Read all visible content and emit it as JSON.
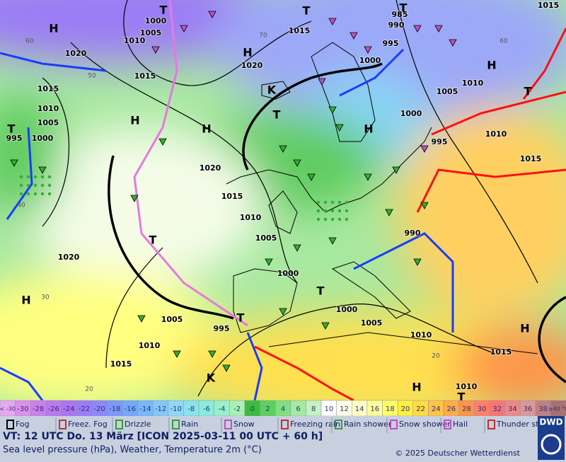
{
  "map": {
    "pressure_labels": [
      "1000",
      "1005",
      "1010",
      "1020",
      "1015",
      "1020",
      "1015",
      "985",
      "990",
      "995",
      "1000",
      "1005",
      "1010",
      "1000",
      "995",
      "1010",
      "1015",
      "1015",
      "1015",
      "1010",
      "1005",
      "1000",
      "995",
      "1020",
      "1015",
      "1010",
      "1005",
      "1000",
      "990",
      "1020",
      "1005",
      "995",
      "1010",
      "1015",
      "1000",
      "1005",
      "1010",
      "1015",
      "1010"
    ],
    "systems": [
      "H",
      "T",
      "T",
      "H",
      "H",
      "T",
      "T",
      "H",
      "H",
      "H",
      "T",
      "T",
      "H",
      "T",
      "T",
      "H",
      "H",
      "T",
      "K",
      "K",
      "T"
    ],
    "isotherm_labels": [
      "60",
      "50",
      "70",
      "60",
      "30",
      "20",
      "20",
      "40"
    ]
  },
  "colorscale": [
    {
      "label": "< -30",
      "color": "#e6a8f0"
    },
    {
      "label": "-30",
      "color": "#dc90ec"
    },
    {
      "label": "-28",
      "color": "#cc80ec"
    },
    {
      "label": "-26",
      "color": "#bc78ee"
    },
    {
      "label": "-24",
      "color": "#ac74f2"
    },
    {
      "label": "-22",
      "color": "#9c7cf6"
    },
    {
      "label": "-20",
      "color": "#8c88f8"
    },
    {
      "label": "-18",
      "color": "#7c98f8"
    },
    {
      "label": "-16",
      "color": "#74a8f8"
    },
    {
      "label": "-14",
      "color": "#78b8f8"
    },
    {
      "label": "-12",
      "color": "#84c8f8"
    },
    {
      "label": "-10",
      "color": "#90d8f4"
    },
    {
      "label": "-8",
      "color": "#88e4ec"
    },
    {
      "label": "-6",
      "color": "#88ecdc"
    },
    {
      "label": "-4",
      "color": "#98f0cc"
    },
    {
      "label": "-2",
      "color": "#a8f0b4"
    },
    {
      "label": "0",
      "color": "#3cbc3c"
    },
    {
      "label": "2",
      "color": "#5cd05c"
    },
    {
      "label": "4",
      "color": "#80e080"
    },
    {
      "label": "6",
      "color": "#a4eaa0"
    },
    {
      "label": "8",
      "color": "#c4f2c0"
    },
    {
      "label": "10",
      "color": "#ffffff"
    },
    {
      "label": "12",
      "color": "#ffffe8"
    },
    {
      "label": "14",
      "color": "#ffffc4"
    },
    {
      "label": "16",
      "color": "#ffff98"
    },
    {
      "label": "18",
      "color": "#ffff68"
    },
    {
      "label": "20",
      "color": "#fff040"
    },
    {
      "label": "22",
      "color": "#ffdc40"
    },
    {
      "label": "24",
      "color": "#ffc444"
    },
    {
      "label": "26",
      "color": "#ffac44"
    },
    {
      "label": "28",
      "color": "#ff9448"
    },
    {
      "label": "30",
      "color": "#ff8064"
    },
    {
      "label": "32",
      "color": "#f87474"
    },
    {
      "label": "34",
      "color": "#ec8888"
    },
    {
      "label": "36",
      "color": "#dc9898"
    },
    {
      "label": "38",
      "color": "#c08080"
    },
    {
      "label": "≥40 °C",
      "color": "#a87070"
    }
  ],
  "legend": [
    "Fog",
    "Freez. Fog",
    "Drizzle",
    "Rain",
    "Snow",
    "Freezing rain",
    "Rain shower",
    "Snow shower",
    "Hail",
    "Thunder storm"
  ],
  "footer": {
    "valid_time": "VT: 12 UTC Do.  13 März [ICON 2025-03-11  00 UTC + 60 h]",
    "subtitle": "Sea level pressure (hPa), Weather, Temperature 2m (°C)",
    "copyright": "© 2025 Deutscher Wetterdienst",
    "logo": "DWD"
  }
}
